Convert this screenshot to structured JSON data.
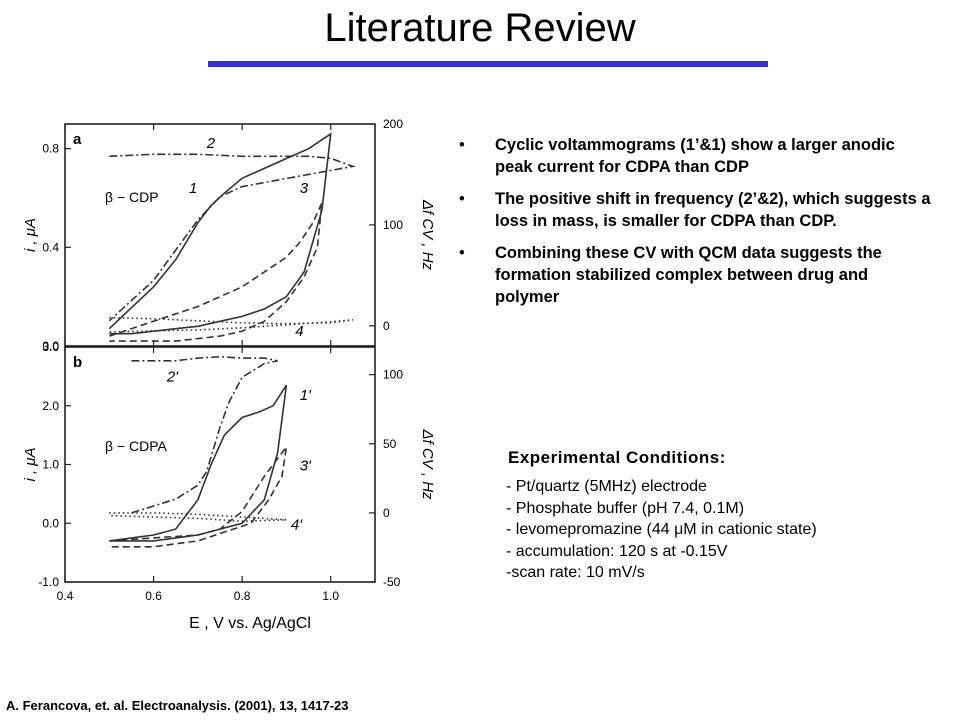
{
  "slide": {
    "title": "Literature Review",
    "bullets": [
      "Cyclic voltammograms (1’&1) show a larger anodic peak current for CDPA than CDP",
      "The positive shift in frequency (2’&2), which suggests a loss in mass, is smaller for CDPA than CDP.",
      "Combining these CV with QCM data suggests the formation stabilized complex between drug and polymer"
    ],
    "bullet_glyph": "•",
    "conditions_title": "Experimental Conditions:",
    "conditions": [
      "- Pt/quartz (5MHz) electrode",
      "- Phosphate buffer (pH 7.4, 0.1M)",
      "- levomepromazine (44 μM in cationic state)",
      "- accumulation: 120 s at -0.15V",
      "-scan rate: 10 mV/s"
    ],
    "citation": "A. Ferancova, et. al.  Electroanalysis.  (2001), 13, 1417-23",
    "accent_color": "#3333cc"
  },
  "chart_data": [
    {
      "type": "line",
      "panel_label": "a",
      "annotation": "β − CDP",
      "xlabel": "E , V vs. Ag/AgCl",
      "ylabel": "i , μA",
      "y2label": "Δf CV , Hz",
      "xlim": [
        0.4,
        1.1
      ],
      "xticks": [
        "0.4",
        "0.6",
        "0.8",
        "1.0"
      ],
      "ylim": [
        0.0,
        0.9
      ],
      "yticks": [
        "0.0",
        "0.4",
        "0.8"
      ],
      "y2lim": [
        -20,
        200
      ],
      "y2ticks": [
        "0",
        "100",
        "200"
      ],
      "series": [
        {
          "name": "1",
          "axis": "left",
          "style": "solid",
          "x": [
            0.5,
            0.6,
            0.65,
            0.7,
            0.73,
            0.76,
            0.8,
            0.85,
            0.9,
            0.95,
            1.0,
            0.98,
            0.94,
            0.9,
            0.85,
            0.8,
            0.75,
            0.7,
            0.65,
            0.6,
            0.55,
            0.5
          ],
          "y": [
            0.07,
            0.24,
            0.35,
            0.5,
            0.57,
            0.62,
            0.68,
            0.72,
            0.76,
            0.8,
            0.86,
            0.55,
            0.3,
            0.2,
            0.15,
            0.12,
            0.1,
            0.08,
            0.07,
            0.06,
            0.05,
            0.05
          ]
        },
        {
          "name": "2",
          "axis": "right",
          "style": "dashdot",
          "x": [
            0.5,
            0.6,
            0.7,
            0.8,
            0.9,
            0.95,
            1.0,
            1.05,
            1.0,
            0.9,
            0.8,
            0.75,
            0.7,
            0.65,
            0.6,
            0.55,
            0.5
          ],
          "y": [
            168,
            170,
            170,
            168,
            168,
            168,
            166,
            158,
            154,
            146,
            138,
            128,
            105,
            75,
            45,
            25,
            5
          ]
        },
        {
          "name": "3",
          "axis": "left",
          "style": "dashed",
          "x": [
            0.5,
            0.6,
            0.65,
            0.7,
            0.75,
            0.8,
            0.85,
            0.9,
            0.93,
            0.96,
            0.98,
            0.97,
            0.94,
            0.9,
            0.85,
            0.8,
            0.75,
            0.7,
            0.65,
            0.6,
            0.5
          ],
          "y": [
            0.04,
            0.1,
            0.13,
            0.16,
            0.2,
            0.24,
            0.3,
            0.36,
            0.42,
            0.5,
            0.58,
            0.4,
            0.28,
            0.18,
            0.1,
            0.06,
            0.04,
            0.03,
            0.02,
            0.02,
            0.02
          ]
        },
        {
          "name": "4",
          "axis": "right",
          "style": "dotted",
          "x": [
            0.5,
            0.6,
            0.7,
            0.8,
            0.9,
            1.0,
            1.05,
            1.0,
            0.9,
            0.8,
            0.7,
            0.6,
            0.5
          ],
          "y": [
            8,
            7,
            5,
            3,
            2,
            3,
            6,
            4,
            1,
            -2,
            -4,
            -5,
            -6
          ]
        }
      ]
    },
    {
      "type": "line",
      "panel_label": "b",
      "annotation": "β − CDPA",
      "xlabel": "E , V vs. Ag/AgCl",
      "ylabel": "i , μA",
      "y2label": "Δf CV , Hz",
      "xlim": [
        0.4,
        1.1
      ],
      "xticks": [
        "0.4",
        "0.6",
        "0.8",
        "1.0"
      ],
      "ylim": [
        -1.0,
        3.0
      ],
      "yticks": [
        "-1.0",
        "0.0",
        "1.0",
        "2.0",
        "3.0"
      ],
      "y2lim": [
        -50,
        120
      ],
      "y2ticks": [
        "-50",
        "0",
        "50",
        "100"
      ],
      "series": [
        {
          "name": "1'",
          "axis": "left",
          "style": "solid",
          "x": [
            0.5,
            0.6,
            0.65,
            0.7,
            0.73,
            0.76,
            0.8,
            0.84,
            0.87,
            0.9,
            0.88,
            0.85,
            0.8,
            0.75,
            0.7,
            0.65,
            0.6,
            0.55,
            0.5
          ],
          "y": [
            -0.3,
            -0.2,
            -0.1,
            0.4,
            1.0,
            1.5,
            1.8,
            1.9,
            2.0,
            2.35,
            1.2,
            0.4,
            0.0,
            -0.1,
            -0.2,
            -0.25,
            -0.3,
            -0.3,
            -0.3
          ]
        },
        {
          "name": "2'",
          "axis": "right",
          "style": "dashdot",
          "x": [
            0.55,
            0.65,
            0.7,
            0.75,
            0.8,
            0.85,
            0.88,
            0.85,
            0.8,
            0.77,
            0.75,
            0.72,
            0.7,
            0.65,
            0.6,
            0.55
          ],
          "y": [
            110,
            110,
            112,
            113,
            112,
            112,
            110,
            108,
            98,
            80,
            62,
            30,
            20,
            10,
            5,
            0
          ]
        },
        {
          "name": "3'",
          "axis": "left",
          "style": "dashed",
          "x": [
            0.5,
            0.6,
            0.7,
            0.75,
            0.8,
            0.85,
            0.9,
            0.89,
            0.86,
            0.82,
            0.78,
            0.74,
            0.7,
            0.65,
            0.6,
            0.5
          ],
          "y": [
            -0.3,
            -0.25,
            -0.2,
            -0.1,
            0.2,
            0.8,
            1.3,
            0.8,
            0.4,
            0.0,
            -0.1,
            -0.2,
            -0.3,
            -0.35,
            -0.4,
            -0.4
          ]
        },
        {
          "name": "4'",
          "axis": "right",
          "style": "dotted",
          "x": [
            0.5,
            0.6,
            0.7,
            0.8,
            0.9,
            0.8,
            0.7,
            0.6,
            0.5
          ],
          "y": [
            0,
            0,
            -1,
            -3,
            -5,
            -6,
            -4,
            -3,
            -2
          ]
        }
      ]
    }
  ]
}
